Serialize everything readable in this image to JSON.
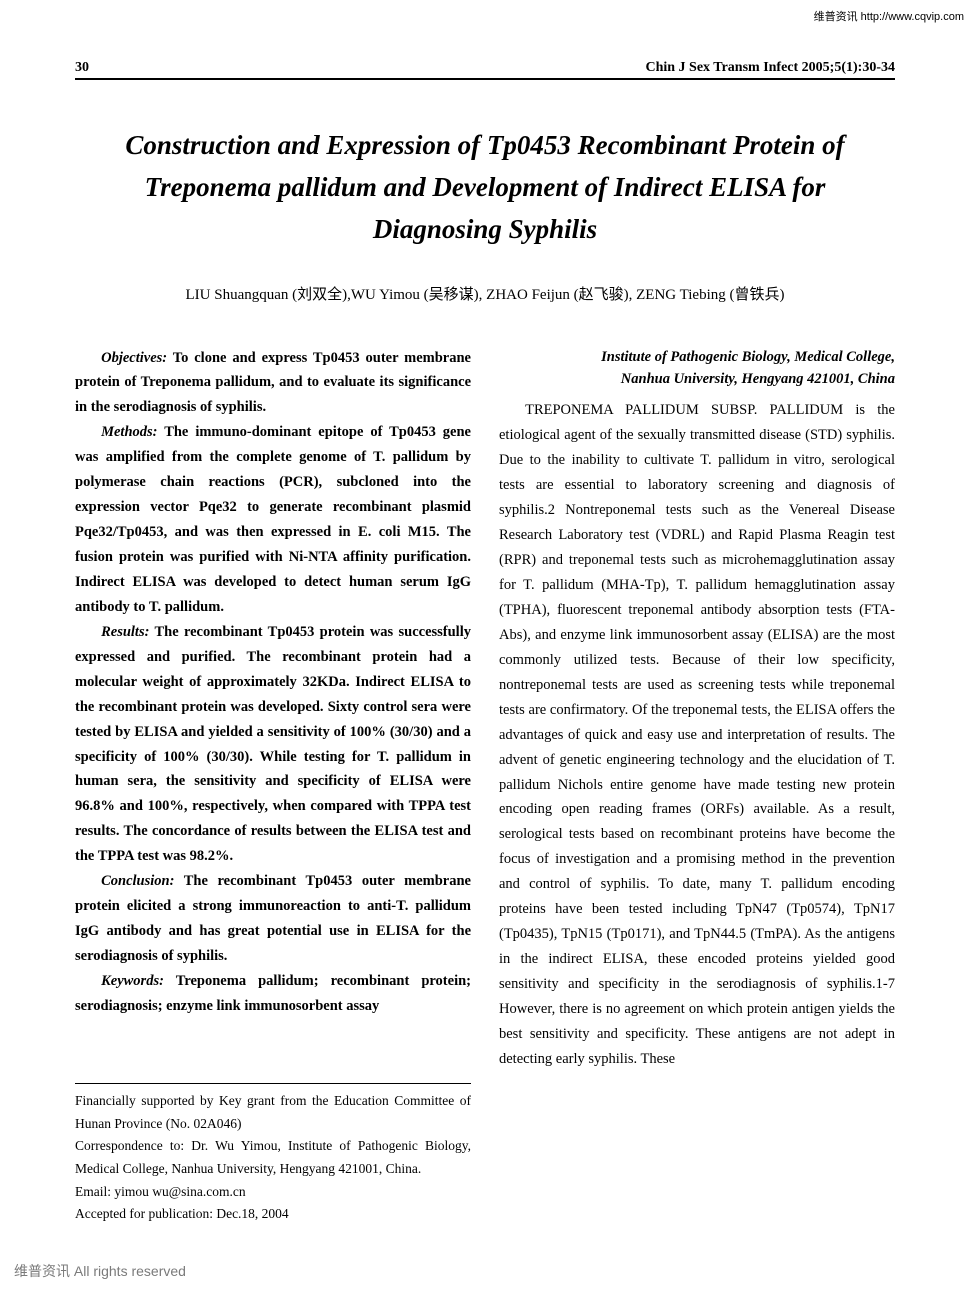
{
  "watermark_top": "维普资讯 http://www.cqvip.com",
  "watermark_bottom": "维普资讯 All rights reserved",
  "header": {
    "page_number": "30",
    "journal": "Chin J Sex Transm Infect  2005;5(1):30-34"
  },
  "title": "Construction and Expression of Tp0453 Recombinant Protein of Treponema pallidum and Development of Indirect ELISA for Diagnosing Syphilis",
  "authors": "LIU Shuangquan (刘双全),WU Yimou (吴移谋), ZHAO Feijun (赵飞骏), ZENG Tiebing (曾铁兵)",
  "affiliation_line1": "Institute of Pathogenic Biology, Medical College,",
  "affiliation_line2": "Nanhua University, Hengyang 421001, China",
  "abstract": {
    "objectives_label": "Objectives:",
    "objectives_text": " To clone and express Tp0453 outer membrane protein of Treponema pallidum, and to evaluate its significance in the serodiagnosis of syphilis.",
    "methods_label": "Methods:",
    "methods_text": " The immuno-dominant epitope of Tp0453 gene was amplified from the complete genome of T. pallidum by polymerase chain reactions (PCR), subcloned into the expression vector Pqe32 to generate recombinant plasmid Pqe32/Tp0453, and was then expressed in E. coli M15. The fusion protein was purified with Ni-NTA affinity purification. Indirect ELISA was developed to detect human serum IgG antibody to T. pallidum.",
    "results_label": "Results:",
    "results_text": " The recombinant Tp0453 protein was successfully expressed and purified. The recombinant protein had a molecular weight of approximately 32KDa. Indirect ELISA to the recombinant protein was developed. Sixty control sera were tested by ELISA and yielded a sensitivity of 100% (30/30) and a specificity of 100% (30/30). While testing for T. pallidum in human sera, the sensitivity and specificity of ELISA were 96.8% and 100%, respectively, when compared with TPPA test results. The concordance of results between the ELISA test and the TPPA test was 98.2%.",
    "conclusion_label": "Conclusion:",
    "conclusion_text": " The recombinant Tp0453 outer membrane protein elicited a strong immunoreaction to anti-T. pallidum IgG antibody and has great potential use in ELISA for the serodiagnosis of syphilis.",
    "keywords_label": "Keywords:",
    "keywords_text": " Treponema pallidum; recombinant protein; serodiagnosis; enzyme link immunosorbent assay"
  },
  "body_text": "TREPONEMA PALLIDUM SUBSP. PALLIDUM is the etiological agent of the sexually transmitted disease (STD) syphilis. Due to the inability to cultivate T. pallidum in vitro, serological tests are essential to laboratory screening and diagnosis of syphilis.2 Nontreponemal tests such as the Venereal Disease Research Laboratory test (VDRL) and Rapid Plasma Reagin test (RPR) and treponemal tests such as microhemagglutination assay for T. pallidum (MHA-Tp), T. pallidum hemagglutination assay (TPHA), fluorescent treponemal antibody absorption tests (FTA-Abs), and enzyme link immunosorbent assay (ELISA) are the most commonly utilized tests.  Because of their low specificity, nontreponemal tests are used as screening tests while treponemal tests are confirmatory. Of the treponemal tests, the ELISA offers the advantages of quick and easy use and interpretation of results. The advent of genetic engineering technology and the elucidation of T. pallidum Nichols entire genome have made testing new protein encoding open reading frames (ORFs) available. As a result, serological tests based on recombinant proteins have become the focus of investigation and a promising method in the prevention and control of syphilis. To date, many T. pallidum encoding proteins have been tested including TpN47 (Tp0574), TpN17 (Tp0435), TpN15 (Tp0171), and TpN44.5 (TmPA). As the antigens in the indirect ELISA, these encoded proteins yielded good sensitivity and specificity in the serodiagnosis of syphilis.1-7 However, there is no agreement on which protein antigen yields the best sensitivity and specificity.  These antigens are not adept in detecting early syphilis. These",
  "footer": {
    "funding": "Financially supported by Key grant from the Education Committee of Hunan Province (No. 02A046)",
    "correspondence": "Correspondence to: Dr. Wu Yimou, Institute of Pathogenic Biology, Medical College, Nanhua University, Hengyang 421001, China.",
    "email": "Email: yimou wu@sina.com.cn",
    "accepted": "Accepted for publication: Dec.18, 2004"
  }
}
